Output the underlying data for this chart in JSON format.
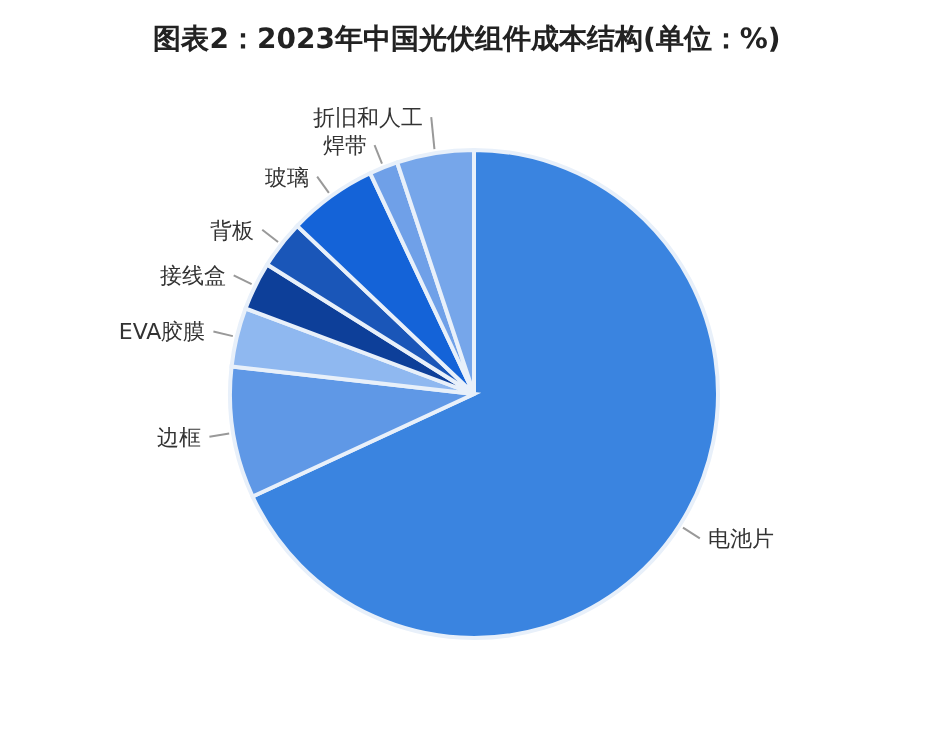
{
  "chart_data": {
    "type": "pie",
    "title": "图表2：2023年中国光伏组件成本结构(单位：%)",
    "categories": [
      "电池片",
      "边框",
      "EVA胶膜",
      "接线盒",
      "背板",
      "玻璃",
      "焊带",
      "折旧和人工"
    ],
    "values": [
      68.1,
      8.7,
      3.9,
      3.2,
      3.2,
      5.9,
      1.9,
      5.1
    ],
    "colors": [
      "#3a84e0",
      "#5f98e6",
      "#8fb8f0",
      "#0d3f99",
      "#1a56b8",
      "#1463d8",
      "#6fa0e8",
      "#76a6ea"
    ],
    "legend": false
  }
}
